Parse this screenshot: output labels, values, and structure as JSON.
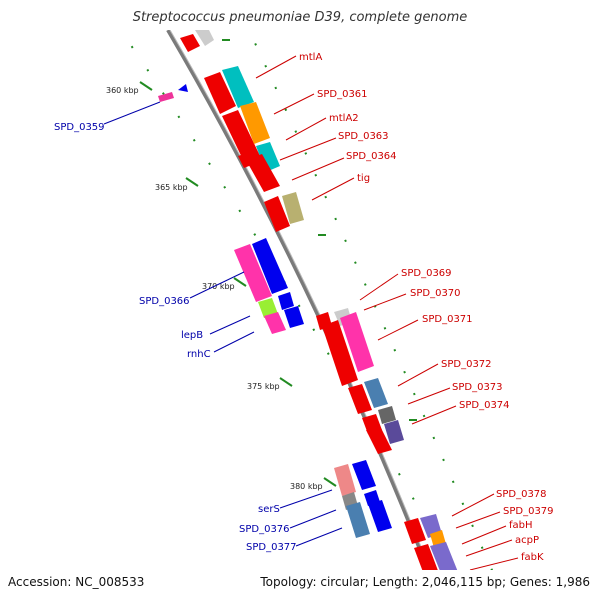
{
  "title": "Streptococcus pneumoniae D39, complete genome",
  "footer": {
    "accession": "Accession: NC_008533",
    "topology": "Topology: circular; Length: 2,046,115 bp; Genes: 1,986"
  },
  "colors": {
    "backbone": "#7a7a7a",
    "tick": "#228b22",
    "label_forward": "#cc0000",
    "label_reverse": "#0000aa"
  },
  "ticks": [
    {
      "label": "360 kbp"
    },
    {
      "label": "365 kbp"
    },
    {
      "label": "370 kbp"
    },
    {
      "label": "375 kbp"
    },
    {
      "label": "380 kbp"
    }
  ],
  "genes_right": [
    {
      "label": "mtlA"
    },
    {
      "label": "SPD_0361"
    },
    {
      "label": "mtlA2"
    },
    {
      "label": "SPD_0363"
    },
    {
      "label": "SPD_0364"
    },
    {
      "label": "tig"
    },
    {
      "label": "SPD_0369"
    },
    {
      "label": "SPD_0370"
    },
    {
      "label": "SPD_0371"
    },
    {
      "label": "SPD_0372"
    },
    {
      "label": "SPD_0373"
    },
    {
      "label": "SPD_0374"
    },
    {
      "label": "SPD_0378"
    },
    {
      "label": "SPD_0379"
    },
    {
      "label": "fabH"
    },
    {
      "label": "acpP"
    },
    {
      "label": "fabK"
    }
  ],
  "genes_left": [
    {
      "label": "SPD_0359"
    },
    {
      "label": "SPD_0366"
    },
    {
      "label": "lepB"
    },
    {
      "label": "rnhC"
    },
    {
      "label": "serS"
    },
    {
      "label": "SPD_0376"
    },
    {
      "label": "SPD_0377"
    }
  ]
}
